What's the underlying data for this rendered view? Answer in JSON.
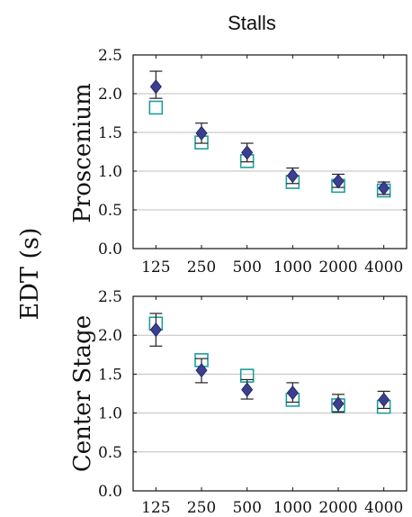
{
  "figure": {
    "title": "Stalls",
    "ylabel": "EDT (s)"
  },
  "colors": {
    "series_a": "#1f9e9a",
    "series_b": "#3b3f8f",
    "error_bar": "#222222",
    "grid": "#bfbfbf",
    "axis": "#111111"
  },
  "chart_data": [
    {
      "type": "scatter",
      "panel_label": "Proscenium",
      "categories": [
        "125",
        "250",
        "500",
        "1000",
        "2000",
        "4000"
      ],
      "ylim": [
        0,
        2.5
      ],
      "yticks": [
        "0.0",
        "0.5",
        "1.0",
        "1.5",
        "2.0",
        "2.5"
      ],
      "grid": true,
      "series": [
        {
          "marker": "open-square",
          "values": [
            1.82,
            1.37,
            1.13,
            0.86,
            0.81,
            0.75
          ]
        },
        {
          "marker": "filled-diamond",
          "values": [
            2.09,
            1.49,
            1.24,
            0.94,
            0.87,
            0.78
          ],
          "error": [
            [
              1.94,
              2.29
            ],
            [
              1.36,
              1.62
            ],
            [
              1.12,
              1.36
            ],
            [
              0.84,
              1.04
            ],
            [
              0.79,
              0.96
            ],
            [
              0.7,
              0.86
            ]
          ]
        }
      ]
    },
    {
      "type": "scatter",
      "panel_label": "Center Stage",
      "categories": [
        "125",
        "250",
        "500",
        "1000",
        "2000",
        "4000"
      ],
      "ylim": [
        0,
        2.5
      ],
      "yticks": [
        "0.0",
        "0.5",
        "1.0",
        "1.5",
        "2.0",
        "2.5"
      ],
      "grid": true,
      "series": [
        {
          "marker": "open-square",
          "values": [
            2.15,
            1.68,
            1.48,
            1.17,
            1.1,
            1.08
          ]
        },
        {
          "marker": "filled-diamond",
          "values": [
            2.07,
            1.55,
            1.3,
            1.26,
            1.12,
            1.17
          ],
          "error": [
            [
              1.86,
              2.28
            ],
            [
              1.39,
              1.7
            ],
            [
              1.18,
              1.43
            ],
            [
              1.14,
              1.39
            ],
            [
              1.01,
              1.24
            ],
            [
              1.06,
              1.28
            ]
          ]
        }
      ]
    }
  ]
}
